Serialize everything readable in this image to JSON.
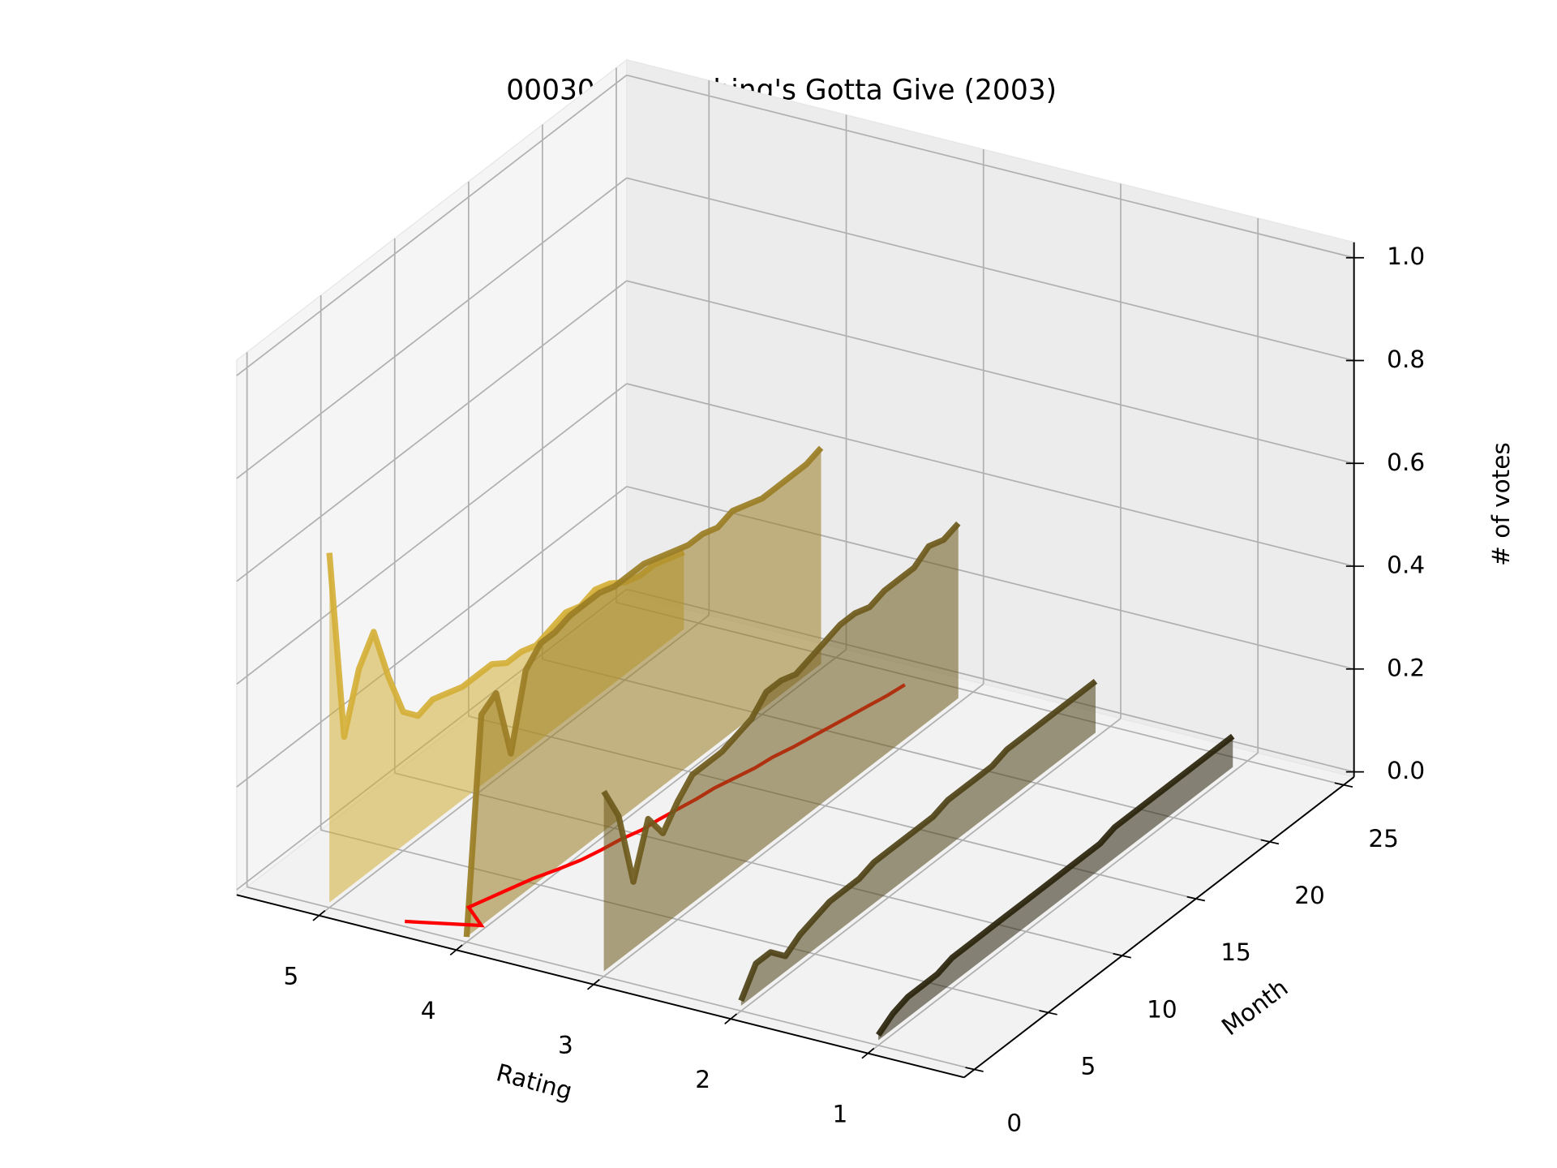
{
  "chart_data": {
    "type": "line3d",
    "title": "00030 - Something's Gotta Give (2003)",
    "xlabel": "Rating",
    "ylabel": "Month",
    "zlabel": "# of votes",
    "xlim": [
      0.3,
      5.6
    ],
    "ylim": [
      -0.7,
      25.7
    ],
    "zlim": [
      -0.01,
      1.03
    ],
    "xticks": [
      1,
      2,
      3,
      4,
      5
    ],
    "yticks": [
      0,
      5,
      10,
      15,
      20,
      25
    ],
    "zticks": [
      {
        "value": 0,
        "label": "0.0"
      },
      0.2,
      0.4,
      0.6,
      0.8,
      {
        "value": 1,
        "label": "1.0"
      }
    ],
    "grid": true,
    "months": [
      0,
      1,
      2,
      3,
      4,
      5,
      6,
      7,
      8,
      9,
      10,
      11,
      12,
      13,
      14,
      15,
      16,
      17,
      18,
      19,
      20,
      21,
      22,
      23,
      24
    ],
    "series": [
      {
        "x": 5,
        "color": "#d4af37",
        "values": [
          0.68,
          0.3,
          0.41,
          0.46,
          0.35,
          0.26,
          0.23,
          0.24,
          0.23,
          0.22,
          0.22,
          0.22,
          0.2,
          0.2,
          0.19,
          0.2,
          0.21,
          0.2,
          0.21,
          0.2,
          0.18,
          0.17,
          0.17,
          0.16,
          0.15
        ]
      },
      {
        "x": 4,
        "color": "#9a7d24",
        "values": [
          0.0,
          0.41,
          0.43,
          0.29,
          0.43,
          0.46,
          0.46,
          0.47,
          0.47,
          0.47,
          0.46,
          0.46,
          0.46,
          0.45,
          0.44,
          0.43,
          0.43,
          0.42,
          0.43,
          0.42,
          0.41,
          0.41,
          0.41,
          0.41,
          0.42
        ]
      },
      {
        "x": 3,
        "color": "#6e5a1c",
        "values": [
          0.35,
          0.28,
          0.13,
          0.23,
          0.18,
          0.22,
          0.25,
          0.25,
          0.25,
          0.26,
          0.27,
          0.3,
          0.3,
          0.29,
          0.3,
          0.31,
          0.32,
          0.32,
          0.31,
          0.32,
          0.32,
          0.32,
          0.34,
          0.33,
          0.34
        ]
      },
      {
        "x": 2,
        "color": "#4e4217",
        "values": [
          0.01,
          0.06,
          0.06,
          0.03,
          0.05,
          0.06,
          0.07,
          0.07,
          0.07,
          0.08,
          0.08,
          0.08,
          0.08,
          0.08,
          0.09,
          0.09,
          0.09,
          0.09,
          0.1,
          0.1,
          0.1,
          0.1,
          0.1,
          0.1,
          0.1
        ]
      },
      {
        "x": 1,
        "color": "#2a240c",
        "values": [
          0.01,
          0.03,
          0.04,
          0.04,
          0.04,
          0.05,
          0.05,
          0.05,
          0.05,
          0.05,
          0.05,
          0.05,
          0.05,
          0.05,
          0.05,
          0.05,
          0.06,
          0.06,
          0.06,
          0.06,
          0.06,
          0.06,
          0.06,
          0.06,
          0.06
        ]
      }
    ],
    "mean_line": {
      "color": "#ff0000",
      "x": [
        4.45,
        4.0,
        4.2,
        4.15,
        4.1,
        4.05,
        3.98,
        3.92,
        3.88,
        3.85,
        3.8,
        3.78,
        3.75,
        3.72,
        3.7,
        3.66,
        3.62,
        3.6,
        3.56,
        3.53,
        3.5,
        3.47,
        3.44,
        3.41,
        3.39
      ]
    }
  }
}
